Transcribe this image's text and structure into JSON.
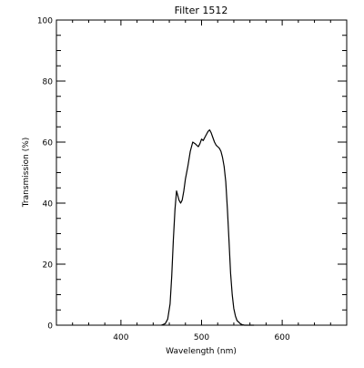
{
  "chart_data": {
    "type": "line",
    "title": "Filter  1512",
    "xlabel": "Wavelength (nm)",
    "ylabel": "Transmission (%)",
    "xlim": [
      320,
      680
    ],
    "ylim": [
      0,
      100
    ],
    "xticks_major": [
      400,
      500,
      600
    ],
    "xticks_minor_step": 20,
    "yticks_major": [
      0,
      20,
      40,
      60,
      80,
      100
    ],
    "yticks_minor_step": 5,
    "grid": false,
    "line_color": "#000000",
    "series": [
      {
        "x": [
          450,
          455,
          458,
          461,
          463,
          465,
          467,
          469,
          470,
          472,
          474,
          476,
          478,
          480,
          483,
          486,
          489,
          492,
          494,
          496,
          498,
          500,
          502,
          504,
          506,
          508,
          510,
          512,
          514,
          516,
          518,
          520,
          522,
          524,
          526,
          528,
          530,
          532,
          534,
          536,
          538,
          540,
          542,
          544,
          546,
          548,
          550,
          553,
          556,
          560,
          565
        ],
        "y": [
          0,
          0.5,
          2,
          7,
          16,
          28,
          38,
          44,
          43,
          41,
          40,
          41,
          44,
          48,
          52,
          57,
          60,
          59.5,
          59,
          58.5,
          59.5,
          61,
          60.5,
          61.5,
          62.5,
          63.5,
          64,
          63,
          61.5,
          60,
          59,
          58.5,
          58,
          57,
          55,
          52,
          47,
          38,
          28,
          17,
          10,
          5.5,
          3,
          1.5,
          1,
          0.5,
          0.2,
          0,
          0,
          0,
          0
        ]
      }
    ]
  }
}
